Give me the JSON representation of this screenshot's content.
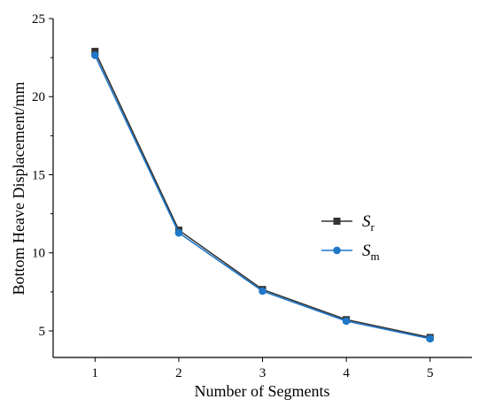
{
  "chart_data": {
    "type": "line",
    "title": "",
    "xlabel": "Number of Segments",
    "ylabel": "Bottom Heave Displacement/mm",
    "x": [
      1,
      2,
      3,
      4,
      5
    ],
    "xticks": [
      "1",
      "2",
      "3",
      "4",
      "5"
    ],
    "yticks": [
      "5",
      "10",
      "15",
      "20",
      "25"
    ],
    "xlim": [
      0.5,
      5.5
    ],
    "ylim": [
      3.3,
      25
    ],
    "grid": false,
    "legend_position": "right",
    "series": [
      {
        "name": "S",
        "name_subscript": "r",
        "marker": "square",
        "color": "#333333",
        "values": [
          22.9,
          11.45,
          7.65,
          5.72,
          4.58
        ]
      },
      {
        "name": "S",
        "name_subscript": "m",
        "marker": "circle",
        "color": "#1f77c8",
        "values": [
          22.65,
          11.28,
          7.55,
          5.63,
          4.5
        ]
      }
    ]
  }
}
